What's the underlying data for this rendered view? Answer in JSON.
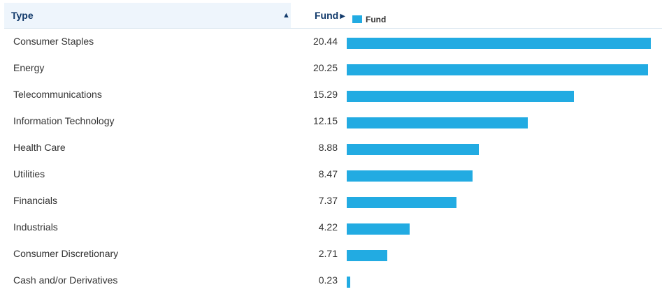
{
  "header": {
    "type_label": "Type",
    "fund_label": "Fund",
    "legend_label": "Fund",
    "sort_icon": "sort-ascending-icon"
  },
  "colors": {
    "bar": "#22abe2",
    "header_text": "#123a6b",
    "header_bg": "#eef5fc"
  },
  "chart_data": {
    "type": "bar",
    "orientation": "horizontal",
    "categories": [
      "Consumer Staples",
      "Energy",
      "Telecommunications",
      "Information Technology",
      "Health Care",
      "Utilities",
      "Financials",
      "Industrials",
      "Consumer Discretionary",
      "Cash and/or Derivatives"
    ],
    "series": [
      {
        "name": "Fund",
        "values": [
          20.44,
          20.25,
          15.29,
          12.15,
          8.88,
          8.47,
          7.37,
          4.22,
          2.71,
          0.23
        ]
      }
    ],
    "value_labels": [
      "20.44",
      "20.25",
      "15.29",
      "12.15",
      "8.88",
      "8.47",
      "7.37",
      "4.22",
      "2.71",
      "0.23"
    ],
    "legend_placement": "top",
    "grid": false
  }
}
